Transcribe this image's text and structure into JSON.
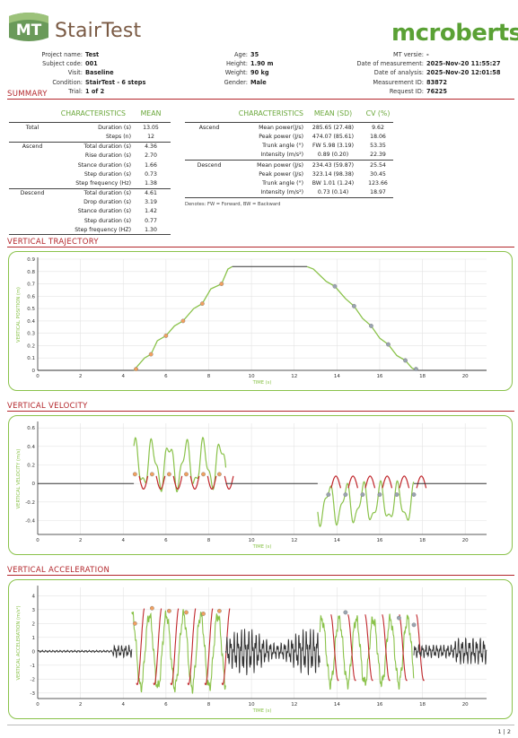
{
  "header": {
    "logo_text": "MT",
    "app_title": "StairTest",
    "brand": "mcroberts"
  },
  "meta_left": [
    {
      "label": "Project name:",
      "value": "Test"
    },
    {
      "label": "Subject code:",
      "value": "001"
    },
    {
      "label": "Visit:",
      "value": "Baseline"
    },
    {
      "label": "Condition:",
      "value": "StairTest - 6 steps"
    },
    {
      "label": "Trial:",
      "value": "1 of 2"
    }
  ],
  "meta_mid": [
    {
      "label": "Age:",
      "value": "35"
    },
    {
      "label": "Height:",
      "value": "1.90 m"
    },
    {
      "label": "Weight:",
      "value": "90 kg"
    },
    {
      "label": "Gender:",
      "value": "Male"
    }
  ],
  "meta_right": [
    {
      "label": "MT versie:",
      "value": "-"
    },
    {
      "label": "Date of measurement:",
      "value": "2025-Nov-20 11:55:27"
    },
    {
      "label": "Date of analysis:",
      "value": "2025-Nov-20 12:01:58"
    },
    {
      "label": "Measurement ID:",
      "value": "83872"
    },
    {
      "label": "Request ID:",
      "value": "76225"
    }
  ],
  "sections": {
    "summary": "SUMMARY",
    "trajectory": "VERTICAL TRAJECTORY",
    "velocity": "VERTICAL VELOCITY",
    "acceleration": "VERTICAL ACCELERATION"
  },
  "table1": {
    "headers": [
      "CHARACTERISTICS",
      "MEAN"
    ],
    "rows": [
      {
        "group": "Total",
        "label": "Duration (s)",
        "value": "13.05"
      },
      {
        "group": "",
        "label": "Steps (n)",
        "value": "12"
      },
      {
        "group": "Ascend",
        "label": "Total duration (s)",
        "value": "4.36"
      },
      {
        "group": "",
        "label": "Rise duration (s)",
        "value": "2.70"
      },
      {
        "group": "",
        "label": "Stance duration (s)",
        "value": "1.66"
      },
      {
        "group": "",
        "label": "Step duration (s)",
        "value": "0.73"
      },
      {
        "group": "",
        "label": "Step frequency (Hz)",
        "value": "1.38"
      },
      {
        "group": "Descend",
        "label": "Total duration (s)",
        "value": "4.61"
      },
      {
        "group": "",
        "label": "Drop duration (s)",
        "value": "3.19"
      },
      {
        "group": "",
        "label": "Stance duration (s)",
        "value": "1.42"
      },
      {
        "group": "",
        "label": "Step duration (s)",
        "value": "0.77"
      },
      {
        "group": "",
        "label": "Step frequency (HZ)",
        "value": "1.30"
      }
    ]
  },
  "table2": {
    "headers": [
      "CHARACTERISTICS",
      "MEAN (SD)",
      "CV (%)"
    ],
    "rows": [
      {
        "group": "Ascend",
        "label": "Mean power(J/s)",
        "mean": "285.65 (27.48)",
        "cv": "9.62"
      },
      {
        "group": "",
        "label": "Peak power (J/s)",
        "mean": "474.07 (85.61)",
        "cv": "18.06"
      },
      {
        "group": "",
        "label": "Trunk angle (°)",
        "mean": "FW 5.98 (3.19)",
        "cv": "53.35"
      },
      {
        "group": "",
        "label": "Intensity (m/s²)",
        "mean": "0.89 (0.20)",
        "cv": "22.39"
      },
      {
        "group": "Descend",
        "label": "Mean power (J/s)",
        "mean": "234.43 (59.87)",
        "cv": "25.54"
      },
      {
        "group": "",
        "label": "Peak power (J/s)",
        "mean": "323.14 (98.38)",
        "cv": "30.45"
      },
      {
        "group": "",
        "label": "Trunk angle (°)",
        "mean": "BW 1.01 (1.24)",
        "cv": "123.66"
      },
      {
        "group": "",
        "label": "Intensity (m/s²)",
        "mean": "0.73 (0.14)",
        "cv": "18.97"
      }
    ],
    "note": "Denotes: FW = Forward, BW = Backward"
  },
  "colors": {
    "accent_red": "#b3262b",
    "green": "#8ac24a",
    "dark_red": "#c0262b",
    "black_line": "#333333",
    "marker_orange": "#f0a060",
    "marker_gray": "#9aa4b0"
  },
  "chart_data": [
    {
      "type": "line",
      "xlabel": "TIME (s)",
      "ylabel": "VERTICAL POSITION (m)",
      "xlim": [
        0,
        21
      ],
      "ylim": [
        0,
        0.9
      ],
      "xticks": [
        0,
        2,
        4,
        6,
        8,
        10,
        12,
        14,
        16,
        18,
        20
      ],
      "yticks": [
        0,
        0.1,
        0.2,
        0.3,
        0.4,
        0.5,
        0.6,
        0.7,
        0.8,
        0.9
      ],
      "grid": true,
      "series": [
        {
          "points": [
            [
              0,
              0
            ],
            [
              4.5,
              0
            ],
            [
              4.6,
              0.02
            ],
            [
              5.0,
              0.1
            ],
            [
              5.3,
              0.13
            ],
            [
              5.6,
              0.24
            ],
            [
              6.0,
              0.28
            ],
            [
              6.4,
              0.36
            ],
            [
              6.8,
              0.4
            ],
            [
              7.3,
              0.5
            ],
            [
              7.7,
              0.54
            ],
            [
              8.1,
              0.66
            ],
            [
              8.6,
              0.7
            ],
            [
              8.9,
              0.82
            ],
            [
              9.1,
              0.84
            ],
            [
              12.6,
              0.84
            ],
            [
              12.9,
              0.82
            ],
            [
              13.5,
              0.72
            ],
            [
              13.9,
              0.68
            ],
            [
              14.4,
              0.58
            ],
            [
              14.8,
              0.52
            ],
            [
              15.2,
              0.42
            ],
            [
              15.6,
              0.36
            ],
            [
              16.0,
              0.26
            ],
            [
              16.4,
              0.21
            ],
            [
              16.8,
              0.12
            ],
            [
              17.2,
              0.08
            ],
            [
              17.5,
              0.02
            ],
            [
              17.7,
              0
            ],
            [
              21,
              0
            ]
          ]
        }
      ],
      "markers_ascend": [
        [
          4.6,
          0.01
        ],
        [
          5.3,
          0.13
        ],
        [
          6.0,
          0.28
        ],
        [
          6.8,
          0.4
        ],
        [
          7.7,
          0.54
        ],
        [
          8.6,
          0.7
        ]
      ],
      "markers_descend": [
        [
          13.9,
          0.68
        ],
        [
          14.8,
          0.52
        ],
        [
          15.6,
          0.36
        ],
        [
          16.4,
          0.21
        ],
        [
          17.2,
          0.08
        ],
        [
          17.7,
          0.01
        ]
      ]
    },
    {
      "type": "line",
      "xlabel": "TIME (s)",
      "ylabel": "VERTICAL VELOCITY (m/s)",
      "xlim": [
        0,
        21
      ],
      "ylim": [
        -0.55,
        0.65
      ],
      "xticks": [
        0,
        2,
        4,
        6,
        8,
        10,
        12,
        14,
        16,
        18,
        20
      ],
      "yticks": [
        -0.4,
        -0.2,
        0,
        0.2,
        0.4,
        0.6
      ],
      "grid": true,
      "markers_ascend": [
        [
          4.55,
          0.1
        ],
        [
          5.35,
          0.1
        ],
        [
          6.15,
          0.1
        ],
        [
          6.95,
          0.1
        ],
        [
          7.75,
          0.1
        ],
        [
          8.5,
          0.1
        ]
      ],
      "markers_descend": [
        [
          13.6,
          -0.12
        ],
        [
          14.4,
          -0.12
        ],
        [
          15.2,
          -0.12
        ],
        [
          16.0,
          -0.12
        ],
        [
          16.8,
          -0.12
        ],
        [
          17.6,
          -0.12
        ]
      ]
    },
    {
      "type": "line",
      "xlabel": "TIME (s)",
      "ylabel": "VERTICAL ACCELERATION (m/s²)",
      "xlim": [
        0,
        21
      ],
      "ylim": [
        -3.4,
        4.6
      ],
      "xticks": [
        0,
        2,
        4,
        6,
        8,
        10,
        12,
        14,
        16,
        18,
        20
      ],
      "yticks": [
        -3,
        -2,
        -1,
        0,
        1,
        2,
        3,
        4
      ],
      "grid": true,
      "markers_ascend": [
        [
          4.55,
          2.0
        ],
        [
          5.35,
          3.1
        ],
        [
          6.15,
          2.9
        ],
        [
          6.95,
          2.8
        ],
        [
          7.75,
          2.7
        ],
        [
          8.5,
          2.9
        ]
      ],
      "markers_descend": [
        [
          14.4,
          2.8
        ],
        [
          16.9,
          2.4
        ],
        [
          17.6,
          1.9
        ]
      ]
    }
  ],
  "footer": {
    "page": "1 | 2"
  }
}
